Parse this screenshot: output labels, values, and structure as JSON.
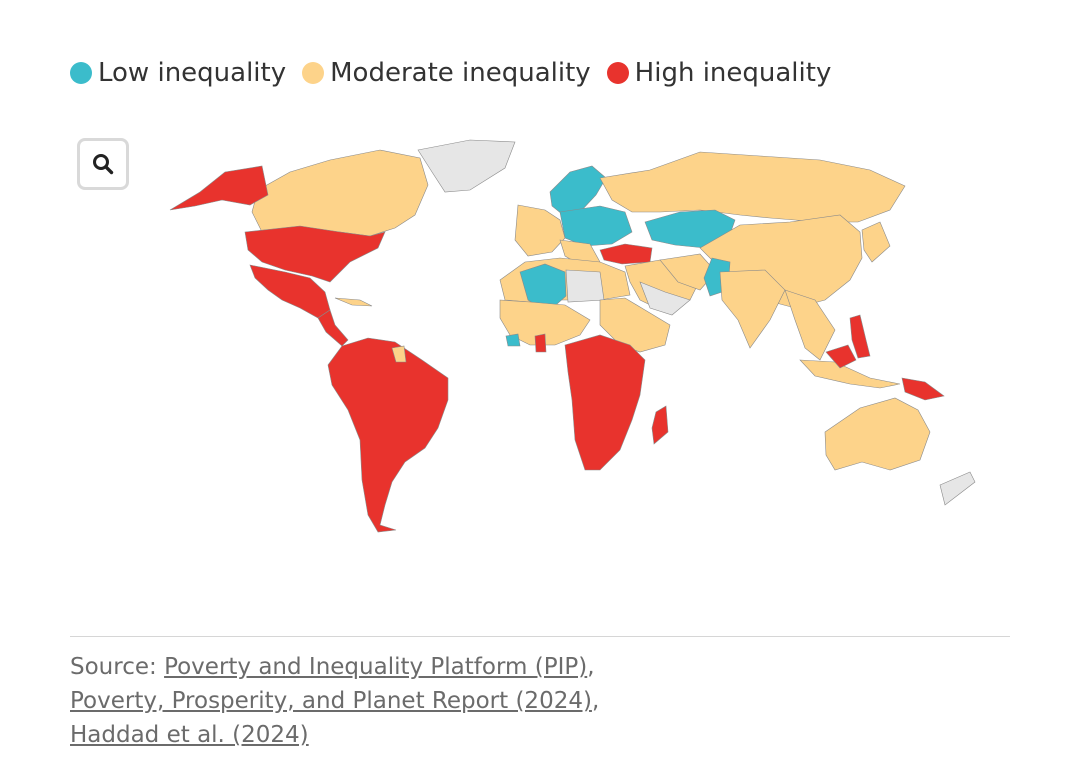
{
  "colors": {
    "low": "#3bbccb",
    "moderate": "#fdd38a",
    "high": "#e8332d",
    "no_data": "#e6e6e6",
    "border": "#8a8a8a"
  },
  "legend": {
    "items": [
      {
        "label": "Low inequality",
        "key": "low"
      },
      {
        "label": "Moderate inequality",
        "key": "moderate"
      },
      {
        "label": "High inequality",
        "key": "high"
      }
    ]
  },
  "zoom": {
    "icon": "search-icon"
  },
  "source": {
    "prefix": "Source: ",
    "links": [
      {
        "text": "Poverty and Inequality Platform (PIP)",
        "after": ","
      },
      {
        "text": "Poverty, Prosperity, and Planet Report (2024)",
        "after": ","
      },
      {
        "text": "Haddad et al. (2024)",
        "after": ""
      }
    ]
  }
}
